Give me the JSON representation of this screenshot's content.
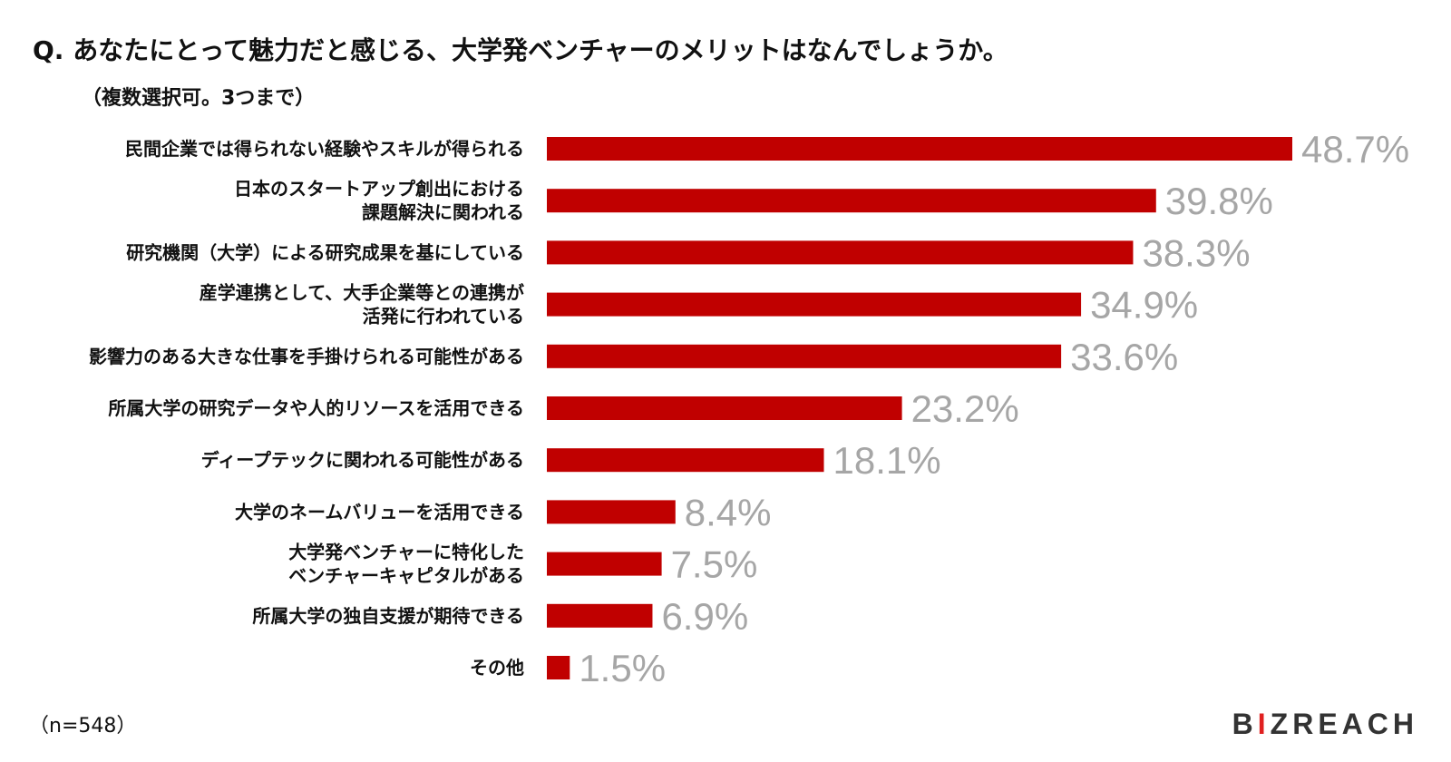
{
  "title": "Q. あなたにとって魅力だと感じる、大学発ベンチャーのメリットはなんでしょうか。",
  "subtitle": "（複数選択可。3つまで）",
  "note": "（n=548）",
  "brand": {
    "pre": "B",
    "accent": "I",
    "post": "ZREAC",
    "mark": "H",
    "accent_color": "#e02020"
  },
  "colors": {
    "bar": "#c00000",
    "value_label": "#a6a6a6"
  },
  "chart_data": {
    "type": "bar",
    "orientation": "horizontal",
    "categories": [
      [
        "民間企業では得られない経験やスキルが得られる"
      ],
      [
        "日本のスタートアップ創出における",
        "課題解決に関われる"
      ],
      [
        "研究機関（大学）による研究成果を基にしている"
      ],
      [
        "産学連携として、大手企業等との連携が",
        "活発に行われている"
      ],
      [
        "影響力のある大きな仕事を手掛けられる可能性がある"
      ],
      [
        "所属大学の研究データや人的リソースを活用できる"
      ],
      [
        "ディープテックに関われる可能性がある"
      ],
      [
        "大学のネームバリューを活用できる"
      ],
      [
        "大学発ベンチャーに特化した",
        "ベンチャーキャピタルがある"
      ],
      [
        "所属大学の独自支援が期待できる"
      ],
      [
        "その他"
      ]
    ],
    "values": [
      48.7,
      39.8,
      38.3,
      34.9,
      33.6,
      23.2,
      18.1,
      8.4,
      7.5,
      6.9,
      1.5
    ],
    "value_labels": [
      "48.7%",
      "39.8%",
      "38.3%",
      "34.9%",
      "33.6%",
      "23.2%",
      "18.1%",
      "8.4%",
      "7.5%",
      "6.9%",
      "1.5%"
    ],
    "unit": "%",
    "xlim": [
      0,
      48.7
    ],
    "grid": false,
    "legend": "none"
  }
}
